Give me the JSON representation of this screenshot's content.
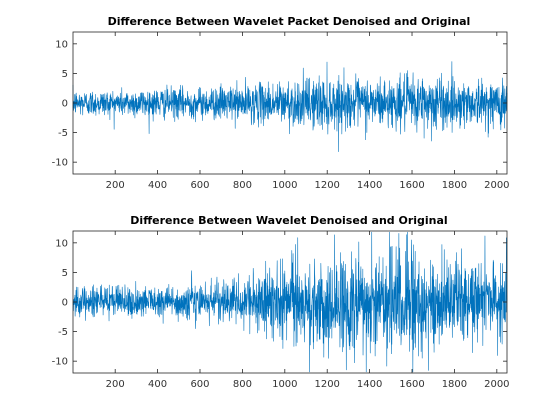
{
  "figure": {
    "background": "#ffffff",
    "line_color": "#0072BD",
    "axis_color": "#262626"
  },
  "chart_data": [
    {
      "type": "line",
      "title": "Difference Between Wavelet Packet Denoised and Original",
      "xlabel": "",
      "ylabel": "",
      "xlim": [
        1,
        2048
      ],
      "ylim": [
        -12,
        12
      ],
      "xticks": [
        200,
        400,
        600,
        800,
        1000,
        1200,
        1400,
        1600,
        1800,
        2000
      ],
      "yticks": [
        -10,
        -5,
        0,
        5,
        10
      ],
      "grid": false,
      "n_points": 2048,
      "envelope": {
        "x": [
          1,
          200,
          400,
          600,
          800,
          900,
          1000,
          1100,
          1150,
          1200,
          1300,
          1400,
          1500,
          1600,
          1650,
          1700,
          1800,
          1900,
          2000,
          2048
        ],
        "amplitude": [
          2.0,
          2.0,
          2.3,
          2.3,
          2.8,
          3.0,
          3.4,
          3.6,
          4.2,
          4.2,
          3.6,
          3.8,
          3.6,
          4.2,
          4.2,
          4.5,
          3.6,
          3.3,
          3.4,
          4.0
        ]
      }
    },
    {
      "type": "line",
      "title": "Difference Between Wavelet Denoised and Original",
      "xlabel": "",
      "ylabel": "",
      "xlim": [
        1,
        2048
      ],
      "ylim": [
        -12,
        12
      ],
      "xticks": [
        200,
        400,
        600,
        800,
        1000,
        1200,
        1400,
        1600,
        1800,
        2000
      ],
      "yticks": [
        -10,
        -5,
        0,
        5,
        10
      ],
      "grid": false,
      "n_points": 2048,
      "envelope": {
        "x": [
          1,
          200,
          400,
          500,
          560,
          620,
          700,
          800,
          880,
          900,
          1000,
          1100,
          1200,
          1300,
          1400,
          1500,
          1600,
          1700,
          1800,
          1900,
          2000,
          2048
        ],
        "amplitude": [
          2.2,
          2.2,
          2.3,
          2.4,
          3.4,
          2.6,
          3.2,
          3.3,
          5.2,
          5.6,
          6.0,
          6.3,
          7.0,
          7.8,
          8.0,
          7.5,
          8.0,
          7.2,
          6.3,
          6.2,
          6.3,
          6.8
        ]
      }
    }
  ]
}
